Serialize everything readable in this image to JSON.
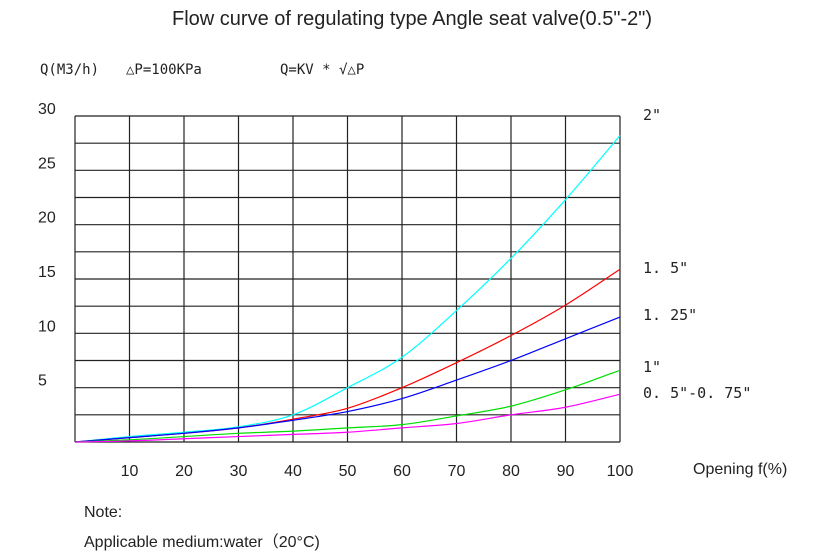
{
  "chart_data": {
    "type": "line",
    "title": "Flow curve of regulating type Angle seat valve(0.5\"-2\")",
    "ylabel": "Q(M3/h)",
    "condition": "△P=100KPa",
    "formula": "Q=KV * √△P",
    "xlabel": "Opening f(%)",
    "xlim": [
      0,
      100
    ],
    "ylim": [
      0,
      30
    ],
    "grid": true,
    "x_ticks": [
      "10",
      "20",
      "30",
      "40",
      "50",
      "60",
      "70",
      "80",
      "90",
      "100"
    ],
    "y_ticks": [
      "5",
      "10",
      "15",
      "20",
      "25",
      "30"
    ],
    "x": [
      0,
      10,
      20,
      30,
      40,
      50,
      60,
      70,
      80,
      90,
      100
    ],
    "series": [
      {
        "name": "2\"",
        "color": "#00ffff",
        "values": [
          0,
          0.5,
          0.9,
          1.4,
          2.5,
          5.0,
          7.8,
          12.1,
          16.9,
          22.3,
          28.2
        ]
      },
      {
        "name": "1.5\"",
        "color": "#ff0000",
        "values": [
          0,
          0.4,
          0.8,
          1.3,
          2.1,
          3.1,
          5.0,
          7.3,
          9.8,
          12.6,
          15.9
        ]
      },
      {
        "name": "1.25\"",
        "color": "#0000ff",
        "values": [
          0,
          0.4,
          0.8,
          1.3,
          2.0,
          2.8,
          4.0,
          5.7,
          7.5,
          9.5,
          11.5
        ]
      },
      {
        "name": "1\"",
        "color": "#00dd00",
        "values": [
          0,
          0.2,
          0.5,
          0.8,
          1.0,
          1.3,
          1.6,
          2.4,
          3.3,
          4.8,
          6.6
        ]
      },
      {
        "name": "0.5\"-0.75\"",
        "color": "#ff00ff",
        "values": [
          0,
          0.1,
          0.3,
          0.5,
          0.7,
          0.9,
          1.3,
          1.7,
          2.5,
          3.2,
          4.4
        ]
      }
    ],
    "series_labels": [
      "2\"",
      "1. 5\"",
      "1. 25\"",
      "1\"",
      "0. 5\"-0. 75\""
    ]
  },
  "note": {
    "heading": "Note:",
    "text": "Applicable medium:water（20°C)"
  }
}
